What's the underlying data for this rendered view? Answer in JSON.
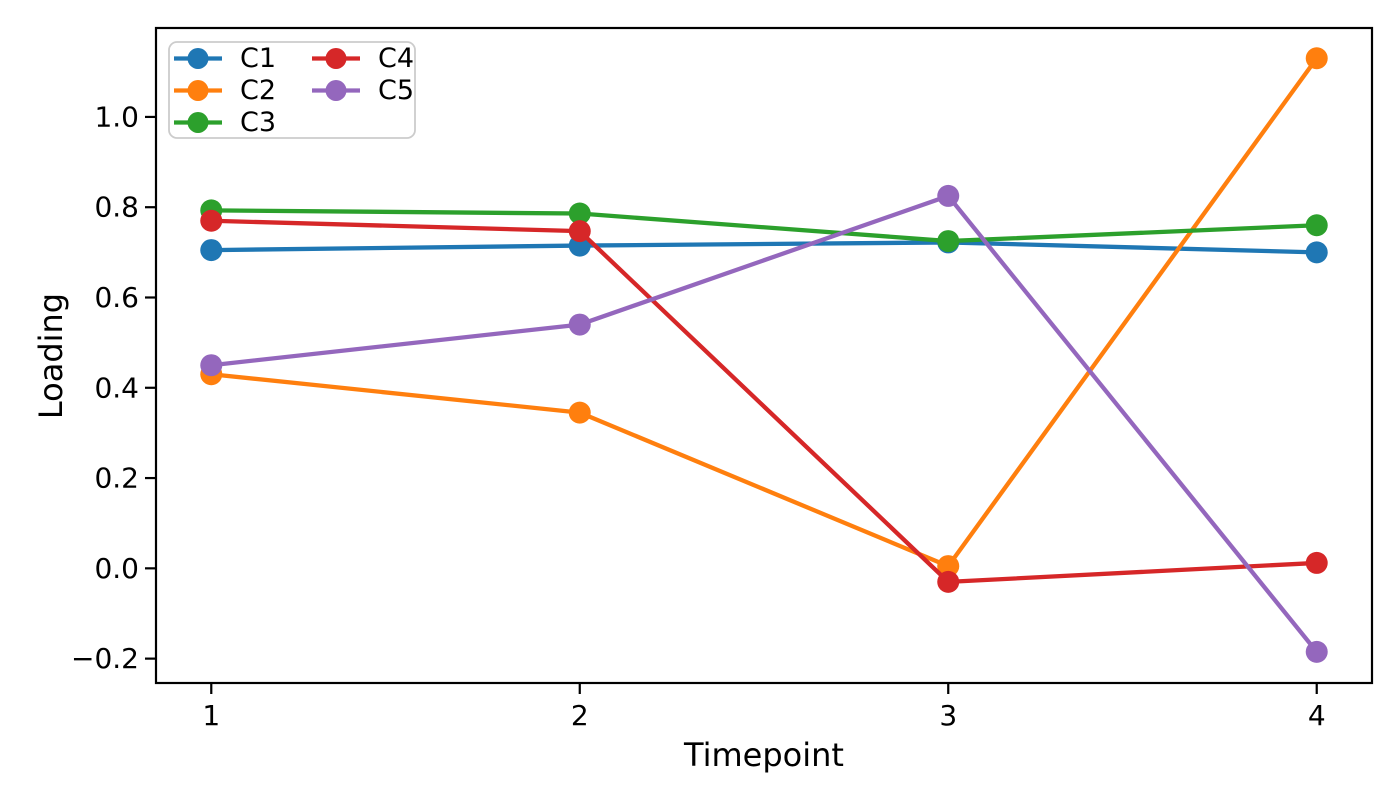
{
  "figure": {
    "background": "#ffffff",
    "spine_color": "#000000"
  },
  "chart_data": {
    "type": "line",
    "title": "",
    "xlabel": "Timepoint",
    "ylabel": "Loading",
    "x": [
      1,
      2,
      3,
      4
    ],
    "xlim": [
      0.85,
      4.15
    ],
    "ylim": [
      -0.254,
      1.197
    ],
    "grid": false,
    "xticks": [
      {
        "value": 1,
        "label": "1"
      },
      {
        "value": 2,
        "label": "2"
      },
      {
        "value": 3,
        "label": "3"
      },
      {
        "value": 4,
        "label": "4"
      }
    ],
    "yticks": [
      {
        "value": -0.2,
        "label": "−0.2"
      },
      {
        "value": 0.0,
        "label": "0.0"
      },
      {
        "value": 0.2,
        "label": "0.2"
      },
      {
        "value": 0.4,
        "label": "0.4"
      },
      {
        "value": 0.6,
        "label": "0.6"
      },
      {
        "value": 0.8,
        "label": "0.8"
      },
      {
        "value": 1.0,
        "label": "1.0"
      }
    ],
    "series": [
      {
        "name": "C1",
        "color": "#1f77b4",
        "values": [
          0.705,
          0.715,
          0.722,
          0.7
        ]
      },
      {
        "name": "C2",
        "color": "#ff7f0e",
        "values": [
          0.43,
          0.345,
          0.005,
          1.13
        ]
      },
      {
        "name": "C3",
        "color": "#2ca02c",
        "values": [
          0.793,
          0.786,
          0.725,
          0.76
        ]
      },
      {
        "name": "C4",
        "color": "#d62728",
        "values": [
          0.77,
          0.747,
          -0.03,
          0.012
        ]
      },
      {
        "name": "C5",
        "color": "#9467bd",
        "values": [
          0.45,
          0.54,
          0.825,
          -0.185
        ]
      }
    ],
    "legend": {
      "position": "upper left",
      "columns": 2,
      "frame": true,
      "frame_color": "#cccccc",
      "labels": [
        "C1",
        "C2",
        "C3",
        "C4",
        "C5"
      ]
    }
  }
}
